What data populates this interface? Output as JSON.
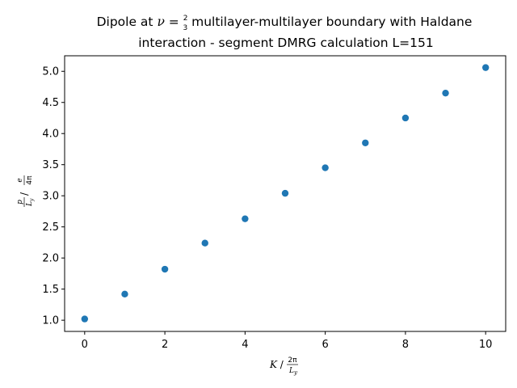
{
  "chart_data": {
    "type": "scatter",
    "title": {
      "line1_prefix": "Dipole at ",
      "nu": "ν",
      "equals": " = ",
      "frac_num": "2",
      "frac_den": "3",
      "line1_suffix": " multilayer-multilayer boundary with Haldane",
      "line2": "interaction - segment DMRG calculation L=151"
    },
    "xlabel": {
      "var": "K",
      "slash": " / ",
      "frac_num": "2π",
      "frac_den": "L",
      "frac_den_sub": "y"
    },
    "ylabel": {
      "frac1_num": "p",
      "frac1_den": "L",
      "frac1_den_sub": "y",
      "slash": " / ",
      "frac2_num": "e",
      "frac2_den": "4π"
    },
    "xlim": [
      -0.5,
      10.5
    ],
    "ylim": [
      0.82,
      5.25
    ],
    "xticks": [
      0,
      2,
      4,
      6,
      8,
      10
    ],
    "xtick_labels": [
      "0",
      "2",
      "4",
      "6",
      "8",
      "10"
    ],
    "yticks": [
      1.0,
      1.5,
      2.0,
      2.5,
      3.0,
      3.5,
      4.0,
      4.5,
      5.0
    ],
    "ytick_labels": [
      "1.0",
      "1.5",
      "2.0",
      "2.5",
      "3.0",
      "3.5",
      "4.0",
      "4.5",
      "5.0"
    ],
    "grid": false,
    "marker_color": "#1f77b4",
    "x": [
      0,
      1,
      2,
      3,
      4,
      5,
      6,
      7,
      8,
      9,
      10
    ],
    "y": [
      1.02,
      1.42,
      1.82,
      2.24,
      2.63,
      3.04,
      3.45,
      3.85,
      4.25,
      4.65,
      5.06
    ]
  }
}
